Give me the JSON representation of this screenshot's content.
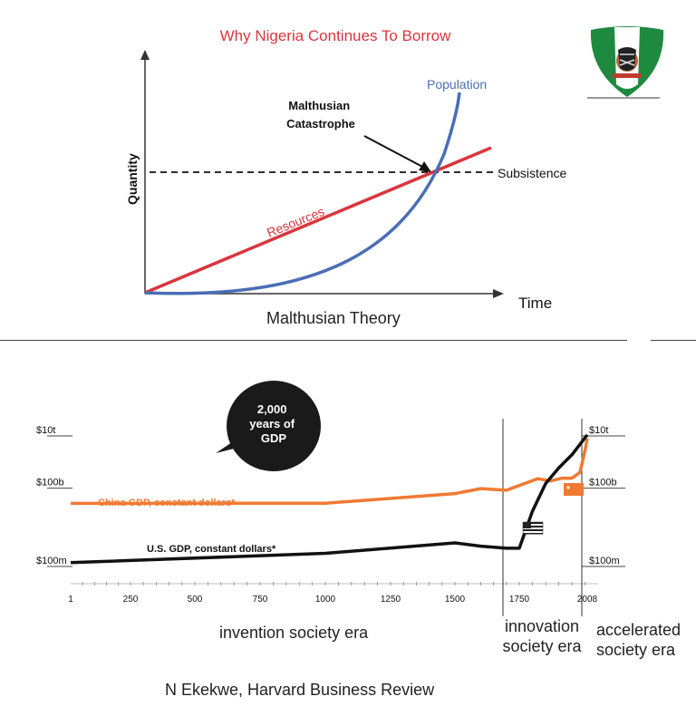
{
  "page": {
    "title": "Why Nigeria Continues To Borrow",
    "credit": "N Ekekwe, Harvard Business Review"
  },
  "chart_data": [
    {
      "type": "line",
      "title": "Malthusian Theory",
      "xlabel": "Time",
      "ylabel": "Quantity",
      "series": [
        {
          "name": "Population",
          "color": "#4a6eb5",
          "shape": "exponential"
        },
        {
          "name": "Resources",
          "color": "#d9363e",
          "shape": "linear"
        },
        {
          "name": "Subsistence",
          "color": "#000000",
          "style": "dashed"
        }
      ],
      "annotations": [
        "Malthusian Catastrophe"
      ]
    },
    {
      "type": "line",
      "title": "2,000 years of GDP",
      "x_ticks": [
        "1",
        "250",
        "500",
        "750",
        "1000",
        "1250",
        "1500",
        "1750",
        "2008"
      ],
      "y_ticks": [
        "$100m",
        "$100b",
        "$10t"
      ],
      "y_ticks_right": [
        "$100m",
        "$100b",
        "$10t"
      ],
      "y_scale": "log",
      "series": [
        {
          "name": "China GDP, constant dollars*",
          "color": "#f07a32",
          "x": [
            1,
            1000,
            1500,
            1600,
            1700,
            1820,
            1870,
            1913,
            1950,
            1980,
            2000,
            2008
          ],
          "y": [
            26000000000.0,
            26500000000.0,
            62000000000.0,
            96000000000.0,
            83000000000.0,
            230000000000.0,
            190000000000.0,
            240000000000.0,
            240000000000.0,
            400000000000.0,
            3000000000000.0,
            8000000000000.0
          ]
        },
        {
          "name": "U.S. GDP, constant dollars*",
          "color": "#111111",
          "x": [
            1,
            1000,
            1500,
            1600,
            1700,
            1750,
            1800,
            1850,
            1900,
            1950,
            2008
          ],
          "y": [
            140000000.0,
            320000000.0,
            800000000.0,
            600000000.0,
            500000000.0,
            500000000.0,
            13000000000.0,
            150000000000.0,
            600000000000.0,
            1900000000000.0,
            11000000000000.0
          ]
        }
      ]
    }
  ],
  "eras": [
    {
      "label": "invention society era"
    },
    {
      "label": "innovation society era"
    },
    {
      "label": "accelerated society era"
    }
  ]
}
